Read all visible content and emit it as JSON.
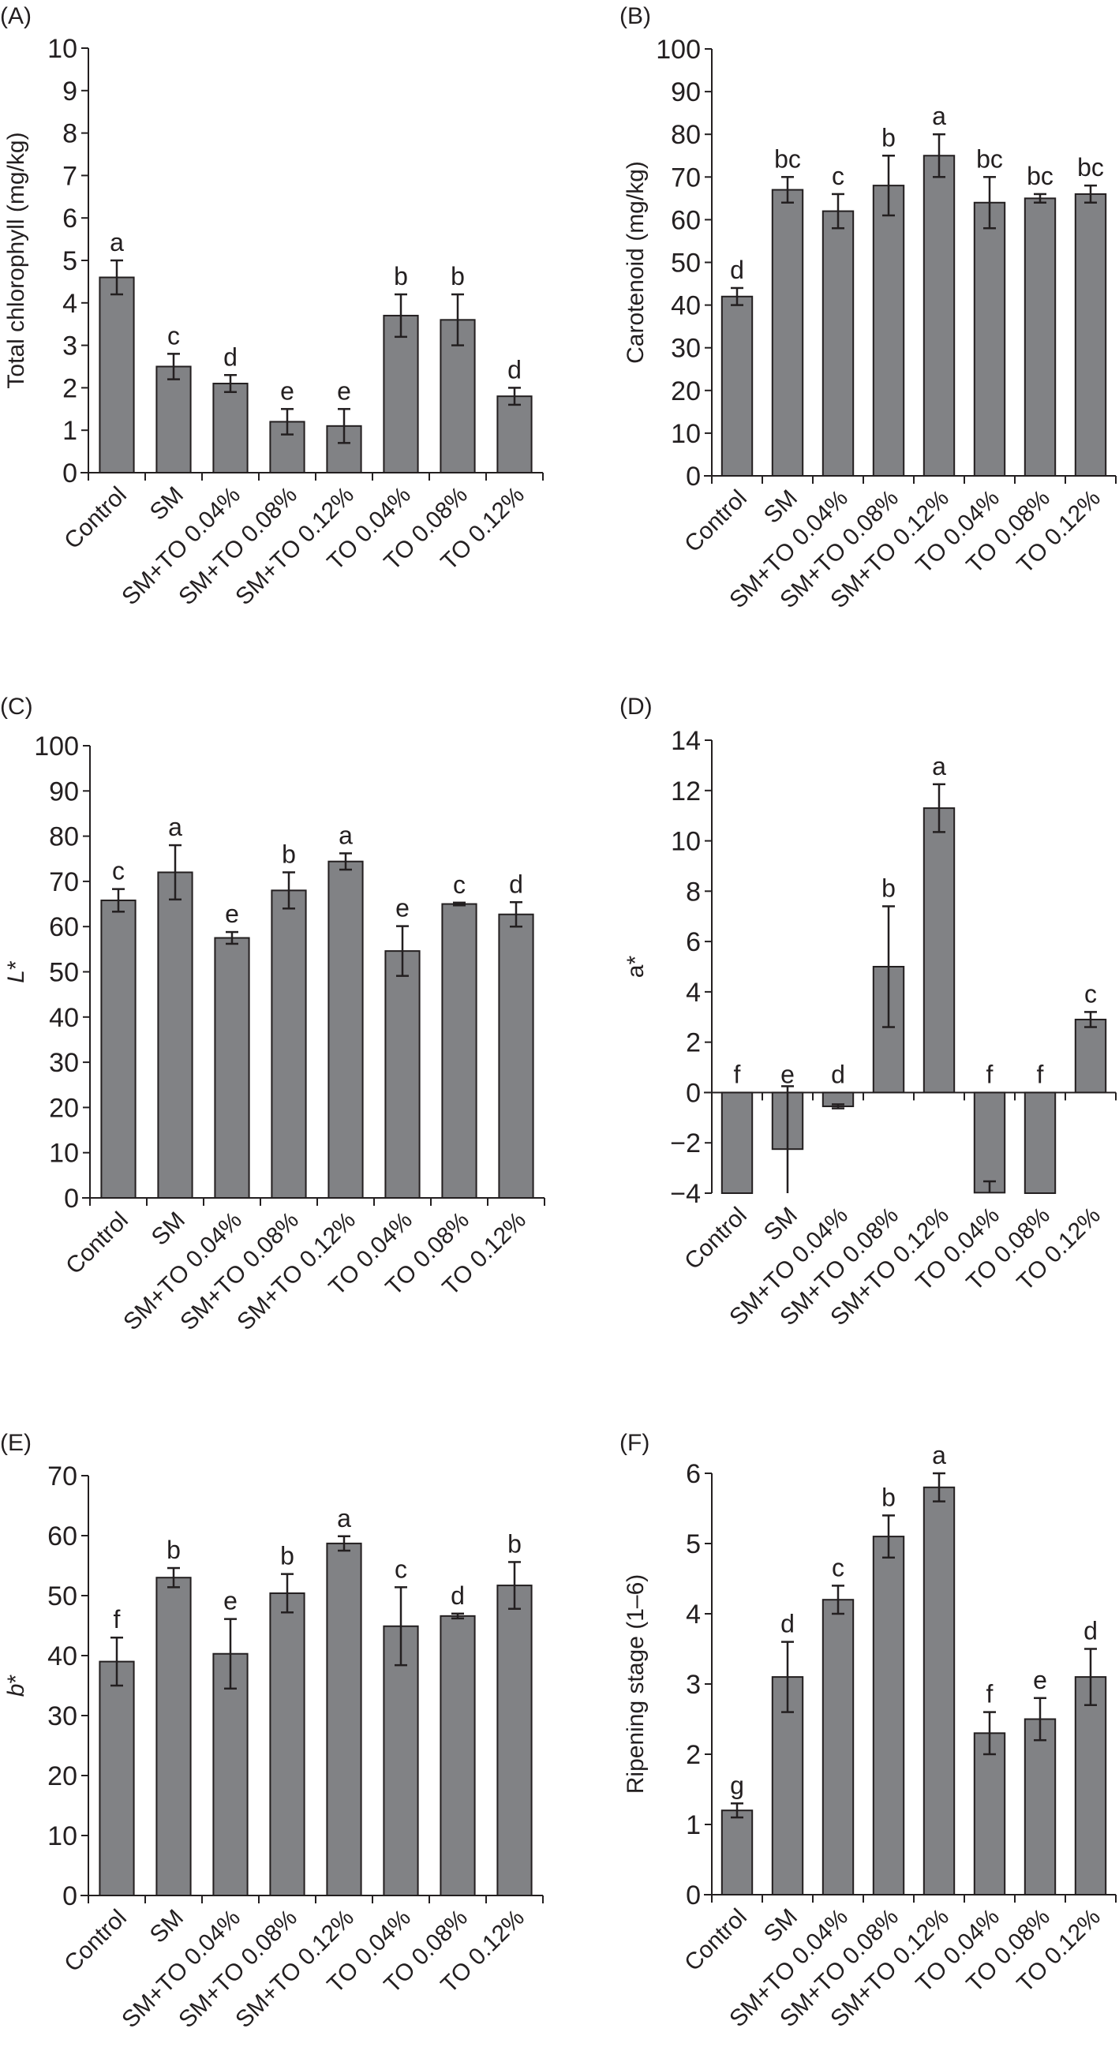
{
  "colors": {
    "bar_fill": "#818285",
    "bar_stroke": "#231f20",
    "axis": "#231f20"
  },
  "chart_data": [
    {
      "panel": "(A)",
      "type": "bar",
      "ylabel": "Total chlorophyll (mg/kg)",
      "categories": [
        "Control",
        "SM",
        "SM+TO 0.04%",
        "SM+TO 0.08%",
        "SM+TO 0.12%",
        "TO 0.04%",
        "TO 0.08%",
        "TO 0.12%"
      ],
      "values": [
        4.6,
        2.5,
        2.1,
        1.2,
        1.1,
        3.7,
        3.6,
        1.8
      ],
      "errors": [
        0.4,
        0.3,
        0.2,
        0.3,
        0.4,
        0.5,
        0.6,
        0.2
      ],
      "significance": [
        "a",
        "c",
        "d",
        "e",
        "e",
        "b",
        "b",
        "d"
      ],
      "ylim": [
        0,
        10
      ],
      "yticks": [
        "0",
        "1",
        "2",
        "3",
        "4",
        "5",
        "6",
        "7",
        "8",
        "9",
        "10"
      ],
      "ytick_values": [
        0,
        1,
        2,
        3,
        4,
        5,
        6,
        7,
        8,
        9,
        10
      ]
    },
    {
      "panel": "(B)",
      "type": "bar",
      "ylabel": "Carotenoid (mg/kg)",
      "categories": [
        "Control",
        "SM",
        "SM+TO 0.04%",
        "SM+TO 0.08%",
        "SM+TO 0.12%",
        "TO 0.04%",
        "TO 0.08%",
        "TO 0.12%"
      ],
      "values": [
        42,
        67,
        62,
        68,
        75,
        64,
        65,
        66
      ],
      "errors": [
        2,
        3,
        4,
        7,
        5,
        6,
        1,
        2
      ],
      "significance": [
        "d",
        "bc",
        "c",
        "b",
        "a",
        "bc",
        "bc",
        "bc"
      ],
      "ylim": [
        0,
        100
      ],
      "yticks": [
        "0",
        "10",
        "20",
        "30",
        "40",
        "50",
        "60",
        "70",
        "80",
        "90",
        "100"
      ],
      "ytick_values": [
        0,
        10,
        20,
        30,
        40,
        50,
        60,
        70,
        80,
        90,
        100
      ]
    },
    {
      "panel": "(C)",
      "type": "bar",
      "ylabel": "L*",
      "categories": [
        "Control",
        "SM",
        "SM+TO 0.04%",
        "SM+TO 0.08%",
        "SM+TO 0.12%",
        "TO 0.04%",
        "TO 0.08%",
        "TO 0.12%"
      ],
      "values": [
        65.8,
        72,
        57.5,
        68,
        74.4,
        54.6,
        65,
        62.7
      ],
      "errors": [
        2.5,
        6,
        1.3,
        4,
        1.8,
        5.5,
        0.3,
        2.7
      ],
      "significance": [
        "c",
        "a",
        "e",
        "b",
        "a",
        "e",
        "c",
        "d"
      ],
      "ylim": [
        0,
        100
      ],
      "yticks": [
        "0",
        "10",
        "20",
        "30",
        "40",
        "50",
        "60",
        "70",
        "80",
        "90",
        "100"
      ],
      "ytick_values": [
        0,
        10,
        20,
        30,
        40,
        50,
        60,
        70,
        80,
        90,
        100
      ]
    },
    {
      "panel": "(D)",
      "type": "bar",
      "ylabel": "a*",
      "categories": [
        "Control",
        "SM",
        "SM+TO 0.04%",
        "SM+TO 0.08%",
        "SM+TO 0.12%",
        "TO 0.04%",
        "TO 0.08%",
        "TO 0.12%"
      ],
      "values": [
        -4,
        -2.25,
        -0.55,
        5,
        11.3,
        -3.98,
        -4,
        2.9
      ],
      "errors": [
        0,
        2.5,
        0.08,
        2.4,
        0.95,
        0.45,
        0,
        0.3
      ],
      "significance": [
        "f",
        "e",
        "d",
        "b",
        "a",
        "f",
        "f",
        "c"
      ],
      "ylim": [
        -4,
        14
      ],
      "yticks": [
        "−4",
        "−2",
        "0",
        "2",
        "4",
        "6",
        "8",
        "10",
        "12",
        "14"
      ],
      "ytick_values": [
        -4,
        -2,
        0,
        2,
        4,
        6,
        8,
        10,
        12,
        14
      ]
    },
    {
      "panel": "(E)",
      "type": "bar",
      "ylabel": "b*",
      "categories": [
        "Control",
        "SM",
        "SM+TO 0.04%",
        "SM+TO 0.08%",
        "SM+TO 0.12%",
        "TO 0.04%",
        "TO 0.08%",
        "TO 0.12%"
      ],
      "values": [
        39,
        53,
        40.3,
        50.4,
        58.7,
        44.9,
        46.6,
        51.7
      ],
      "errors": [
        4,
        1.6,
        5.8,
        3.2,
        1.2,
        6.5,
        0.4,
        3.9
      ],
      "significance": [
        "f",
        "b",
        "e",
        "b",
        "a",
        "c",
        "d",
        "b"
      ],
      "ylim": [
        0,
        70
      ],
      "yticks": [
        "0",
        "10",
        "20",
        "30",
        "40",
        "50",
        "60",
        "70"
      ],
      "ytick_values": [
        0,
        10,
        20,
        30,
        40,
        50,
        60,
        70
      ]
    },
    {
      "panel": "(F)",
      "type": "bar",
      "ylabel": "Ripening stage (1–6)",
      "categories": [
        "Control",
        "SM",
        "SM+TO 0.04%",
        "SM+TO 0.08%",
        "SM+TO 0.12%",
        "TO 0.04%",
        "TO 0.08%",
        "TO 0.12%"
      ],
      "values": [
        1.2,
        3.1,
        4.2,
        5.1,
        5.8,
        2.3,
        2.5,
        3.1
      ],
      "errors": [
        0.1,
        0.5,
        0.2,
        0.3,
        0.2,
        0.3,
        0.3,
        0.4
      ],
      "significance": [
        "g",
        "d",
        "c",
        "b",
        "a",
        "f",
        "e",
        "d"
      ],
      "ylim": [
        0,
        6
      ],
      "yticks": [
        "0",
        "1",
        "2",
        "3",
        "4",
        "5",
        "6"
      ],
      "ytick_values": [
        0,
        1,
        2,
        3,
        4,
        5,
        6
      ]
    }
  ]
}
